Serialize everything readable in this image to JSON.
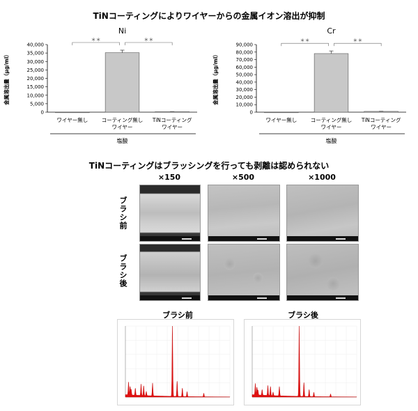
{
  "main_title": "TiNコーティングによりワイヤーからの金属イオン溶出が抑制",
  "section2_title": "TiNコーティングはブラッシングを行っても剥離は認められない",
  "chart_data": [
    {
      "type": "bar",
      "title": "Ni",
      "ylabel": "金属溶出量（μg/ml）",
      "xlabel": "塩酸",
      "categories": [
        "ワイヤー無し",
        "コーティング無しワイヤー",
        "TiNコーティングワイヤー"
      ],
      "category_lines": [
        [
          "ワイヤー無し"
        ],
        [
          "コーティング無し",
          "ワイヤー"
        ],
        [
          "TiNコーティング",
          "ワイヤー"
        ]
      ],
      "values": [
        0,
        35200,
        300
      ],
      "errors": [
        0,
        1500,
        50
      ],
      "ylim": [
        0,
        40000
      ],
      "yticks": [
        0,
        5000,
        10000,
        15000,
        20000,
        25000,
        30000,
        35000,
        40000
      ],
      "ytick_labels": [
        "0",
        "5,000",
        "10,000",
        "15,000",
        "20,000",
        "25,000",
        "30,000",
        "35,000",
        "40,000"
      ],
      "significance": [
        "＊＊",
        "＊＊"
      ]
    },
    {
      "type": "bar",
      "title": "Cr",
      "ylabel": "金属溶出量（μg/ml）",
      "xlabel": "塩酸",
      "categories": [
        "ワイヤー無し",
        "コーティング無しワイヤー",
        "TiNコーティングワイヤー"
      ],
      "category_lines": [
        [
          "ワイヤー無し"
        ],
        [
          "コーティング無し",
          "ワイヤー"
        ],
        [
          "TiNコーティング",
          "ワイヤー"
        ]
      ],
      "values": [
        0,
        78000,
        1000
      ],
      "errors": [
        0,
        3500,
        200
      ],
      "ylim": [
        0,
        90000
      ],
      "yticks": [
        0,
        10000,
        20000,
        30000,
        40000,
        50000,
        60000,
        70000,
        80000,
        90000
      ],
      "ytick_labels": [
        "0",
        "10,000",
        "20,000",
        "30,000",
        "40,000",
        "50,000",
        "60,000",
        "70,000",
        "80,000",
        "90,000"
      ],
      "significance": [
        "＊＊",
        "＊＊"
      ]
    }
  ],
  "sem": {
    "columns": [
      "×150",
      "×500",
      "×1000"
    ],
    "rows": [
      "ブラシ前",
      "ブラシ後"
    ]
  },
  "spectra": [
    {
      "title": "ブラシ前",
      "peaks": [
        [
          0.3,
          0.18
        ],
        [
          0.45,
          0.12
        ],
        [
          0.55,
          0.08
        ],
        [
          0.95,
          0.1
        ],
        [
          1.5,
          0.16
        ],
        [
          1.75,
          0.14
        ],
        [
          2.0,
          0.06
        ],
        [
          2.6,
          0.18
        ],
        [
          4.5,
          1.0
        ],
        [
          4.95,
          0.22
        ],
        [
          5.45,
          0.12
        ],
        [
          5.9,
          0.07
        ],
        [
          7.5,
          0.05
        ]
      ]
    },
    {
      "title": "ブラシ後",
      "peaks": [
        [
          0.3,
          0.16
        ],
        [
          0.45,
          0.11
        ],
        [
          0.55,
          0.07
        ],
        [
          0.95,
          0.08
        ],
        [
          1.5,
          0.14
        ],
        [
          1.75,
          0.13
        ],
        [
          2.0,
          0.05
        ],
        [
          2.6,
          0.13
        ],
        [
          4.5,
          1.0
        ],
        [
          4.95,
          0.2
        ],
        [
          5.45,
          0.1
        ],
        [
          5.9,
          0.06
        ],
        [
          7.5,
          0.04
        ]
      ]
    }
  ]
}
